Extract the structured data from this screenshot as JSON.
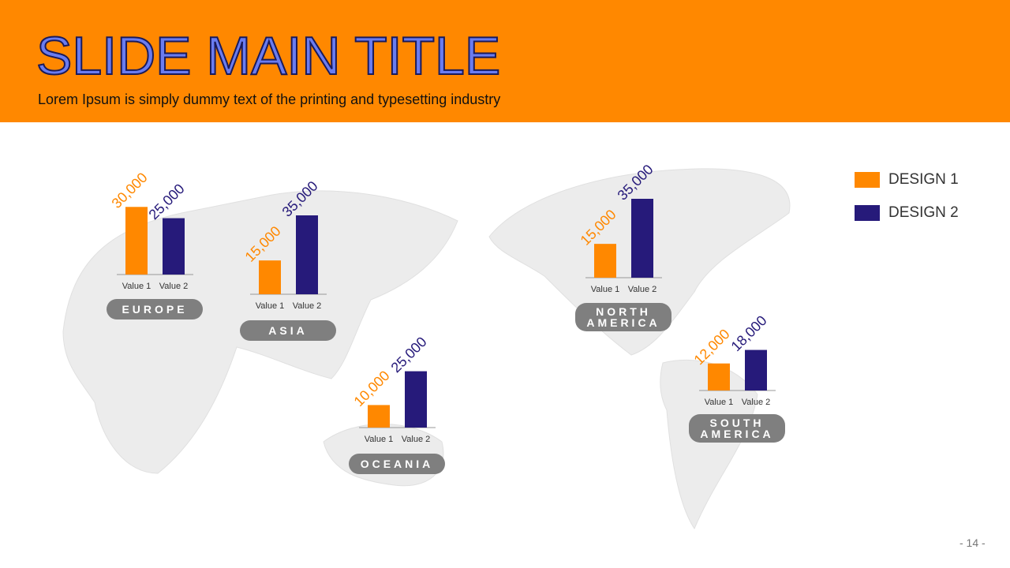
{
  "header": {
    "title": "SLIDE MAIN TITLE",
    "subtitle": "Lorem Ipsum is simply dummy text of the printing and typesetting industry"
  },
  "legend": [
    {
      "name": "DESIGN 1",
      "color": "#ff8800"
    },
    {
      "name": "DESIGN 2",
      "color": "#261a7a"
    }
  ],
  "page_number": "- 14 -",
  "chart_data": [
    {
      "type": "bar",
      "title": "EUROPE",
      "categories": [
        "Value 1",
        "Value 2"
      ],
      "values": [
        30000,
        25000
      ],
      "value_labels": [
        "30,000",
        "25,000"
      ],
      "colors": [
        "#ff8800",
        "#261a7a"
      ]
    },
    {
      "type": "bar",
      "title": "ASIA",
      "categories": [
        "Value 1",
        "Value 2"
      ],
      "values": [
        15000,
        35000
      ],
      "value_labels": [
        "15,000",
        "35,000"
      ],
      "colors": [
        "#ff8800",
        "#261a7a"
      ]
    },
    {
      "type": "bar",
      "title": "OCEANIA",
      "categories": [
        "Value 1",
        "Value 2"
      ],
      "values": [
        10000,
        25000
      ],
      "value_labels": [
        "10,000",
        "25,000"
      ],
      "colors": [
        "#ff8800",
        "#261a7a"
      ]
    },
    {
      "type": "bar",
      "title": "NORTH AMERICA",
      "categories": [
        "Value 1",
        "Value 2"
      ],
      "values": [
        15000,
        35000
      ],
      "value_labels": [
        "15,000",
        "35,000"
      ],
      "colors": [
        "#ff8800",
        "#261a7a"
      ]
    },
    {
      "type": "bar",
      "title": "SOUTH AMERICA",
      "categories": [
        "Value 1",
        "Value 2"
      ],
      "values": [
        12000,
        18000
      ],
      "value_labels": [
        "12,000",
        "18,000"
      ],
      "colors": [
        "#ff8800",
        "#261a7a"
      ]
    }
  ]
}
